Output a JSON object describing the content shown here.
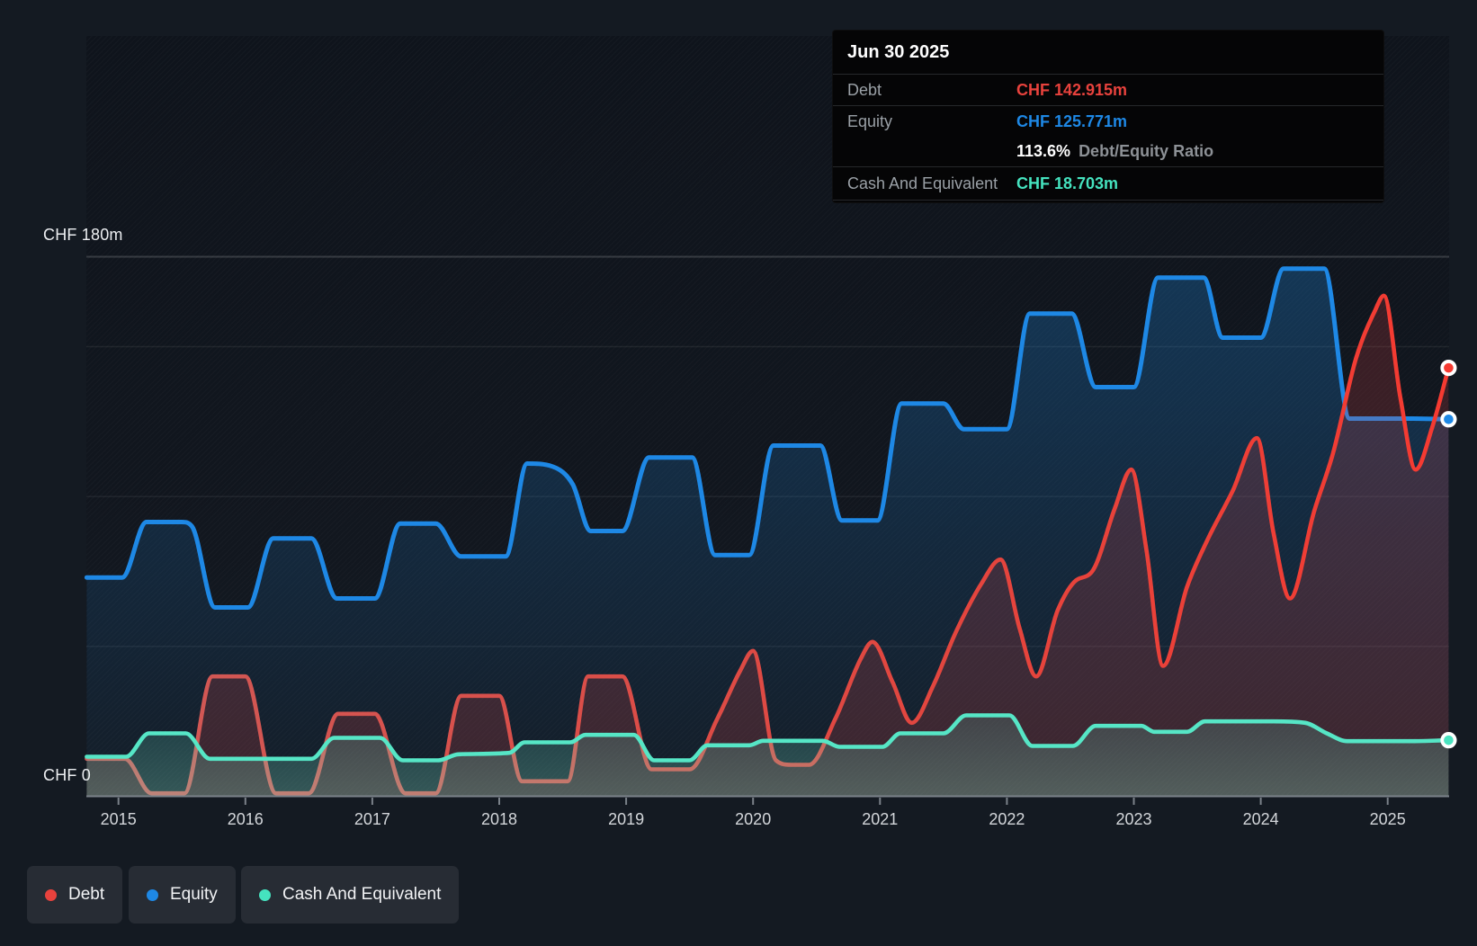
{
  "colors": {
    "debt": "#e8423d",
    "equity": "#1e88e5",
    "cash": "#45e3bf",
    "debt_line_start": "#cf5a57",
    "debt_line_mid": "#e2463f",
    "debt_line_end": "#f53a31",
    "equity_line": "#1e88e5",
    "cash_line": "#56e6c6",
    "axis_line": "#7b828a",
    "gridline_faint": "rgba(255,255,255,0.07)",
    "gridline_top": "rgba(255,255,255,0.16)"
  },
  "tooltip": {
    "date": "Jun 30 2025",
    "debt_label": "Debt",
    "debt_value": "CHF 142.915m",
    "equity_label": "Equity",
    "equity_value": "CHF 125.771m",
    "ratio_value": "113.6%",
    "ratio_label": "Debt/Equity Ratio",
    "cash_label": "Cash And Equivalent",
    "cash_value": "CHF 18.703m"
  },
  "axis": {
    "y_top_label": "CHF 180m",
    "y_zero_label": "CHF 0",
    "x_ticks": [
      "2015",
      "2016",
      "2017",
      "2018",
      "2019",
      "2020",
      "2021",
      "2022",
      "2023",
      "2024",
      "2025"
    ]
  },
  "legend": {
    "items": [
      {
        "id": "debt",
        "label": "Debt"
      },
      {
        "id": "equity",
        "label": "Equity"
      },
      {
        "id": "cash",
        "label": "Cash And Equivalent"
      }
    ]
  },
  "chart_data": {
    "type": "area",
    "x_unit": "decimal_year",
    "x_range": [
      2014.75,
      2025.48
    ],
    "ylim": [
      0,
      180
    ],
    "y_gridlines_m": [
      50,
      100,
      150,
      180
    ],
    "grid": true,
    "legend_position": "bottom-left",
    "last_point_date": "Jun 30 2025",
    "series": [
      {
        "name": "Equity",
        "color": "#1e88e5",
        "points": [
          [
            2014.75,
            73
          ],
          [
            2015.03,
            73
          ],
          [
            2015.22,
            91.5
          ],
          [
            2015.5,
            91.5
          ],
          [
            2015.58,
            90
          ],
          [
            2015.76,
            63
          ],
          [
            2016.02,
            63
          ],
          [
            2016.22,
            86
          ],
          [
            2016.52,
            86
          ],
          [
            2016.72,
            66
          ],
          [
            2017.02,
            66
          ],
          [
            2017.22,
            91
          ],
          [
            2017.5,
            91
          ],
          [
            2017.7,
            80
          ],
          [
            2018.05,
            80
          ],
          [
            2018.22,
            111
          ],
          [
            2018.42,
            110
          ],
          [
            2018.58,
            104
          ],
          [
            2018.72,
            88.5
          ],
          [
            2018.97,
            88.5
          ],
          [
            2019.18,
            113
          ],
          [
            2019.52,
            113
          ],
          [
            2019.7,
            80.5
          ],
          [
            2019.97,
            80.5
          ],
          [
            2020.16,
            117
          ],
          [
            2020.53,
            117
          ],
          [
            2020.7,
            92
          ],
          [
            2020.98,
            92
          ],
          [
            2021.17,
            131
          ],
          [
            2021.5,
            131
          ],
          [
            2021.66,
            122.5
          ],
          [
            2022.0,
            122.5
          ],
          [
            2022.18,
            161
          ],
          [
            2022.51,
            161
          ],
          [
            2022.7,
            136.5
          ],
          [
            2023.0,
            136.5
          ],
          [
            2023.19,
            173
          ],
          [
            2023.55,
            173
          ],
          [
            2023.7,
            153
          ],
          [
            2024.0,
            153
          ],
          [
            2024.18,
            176
          ],
          [
            2024.5,
            176
          ],
          [
            2024.7,
            126
          ],
          [
            2025.2,
            126
          ],
          [
            2025.48,
            125.771
          ]
        ]
      },
      {
        "name": "Debt",
        "color": "#e8423d",
        "points": [
          [
            2014.75,
            12.5
          ],
          [
            2015.05,
            12.5
          ],
          [
            2015.26,
            1
          ],
          [
            2015.52,
            1
          ],
          [
            2015.74,
            40
          ],
          [
            2016.0,
            40
          ],
          [
            2016.24,
            1
          ],
          [
            2016.5,
            1
          ],
          [
            2016.73,
            27.5
          ],
          [
            2017.02,
            27.5
          ],
          [
            2017.26,
            1
          ],
          [
            2017.5,
            1
          ],
          [
            2017.7,
            33.5
          ],
          [
            2018.0,
            33.5
          ],
          [
            2018.18,
            5
          ],
          [
            2018.54,
            5
          ],
          [
            2018.7,
            40
          ],
          [
            2018.97,
            40
          ],
          [
            2019.2,
            9
          ],
          [
            2019.5,
            9
          ],
          [
            2019.72,
            26
          ],
          [
            2019.9,
            42
          ],
          [
            2020.0,
            48.5
          ],
          [
            2020.18,
            12
          ],
          [
            2020.3,
            10.5
          ],
          [
            2020.44,
            10.5
          ],
          [
            2020.65,
            26
          ],
          [
            2020.85,
            46
          ],
          [
            2020.94,
            51.5
          ],
          [
            2021.1,
            38
          ],
          [
            2021.25,
            24.5
          ],
          [
            2021.42,
            37
          ],
          [
            2021.6,
            55
          ],
          [
            2021.8,
            71
          ],
          [
            2021.95,
            79
          ],
          [
            2022.1,
            56
          ],
          [
            2022.23,
            40
          ],
          [
            2022.4,
            62
          ],
          [
            2022.53,
            71.5
          ],
          [
            2022.68,
            75.5
          ],
          [
            2022.85,
            96
          ],
          [
            2022.98,
            109
          ],
          [
            2023.1,
            82
          ],
          [
            2023.23,
            43.5
          ],
          [
            2023.42,
            70
          ],
          [
            2023.58,
            85.5
          ],
          [
            2023.78,
            102
          ],
          [
            2023.97,
            119.5
          ],
          [
            2024.1,
            88
          ],
          [
            2024.23,
            66
          ],
          [
            2024.42,
            95
          ],
          [
            2024.57,
            114.5
          ],
          [
            2024.75,
            146
          ],
          [
            2024.9,
            162
          ],
          [
            2024.97,
            167
          ],
          [
            2025.1,
            133
          ],
          [
            2025.22,
            109
          ],
          [
            2025.35,
            123
          ],
          [
            2025.48,
            142.915
          ]
        ]
      },
      {
        "name": "Cash And Equivalent",
        "color": "#45e3bf",
        "points": [
          [
            2014.75,
            13.2
          ],
          [
            2015.06,
            13.2
          ],
          [
            2015.24,
            21
          ],
          [
            2015.53,
            21
          ],
          [
            2015.72,
            12.5
          ],
          [
            2016.52,
            12.5
          ],
          [
            2016.7,
            19.5
          ],
          [
            2017.06,
            19.5
          ],
          [
            2017.24,
            12
          ],
          [
            2017.52,
            12
          ],
          [
            2017.68,
            14
          ],
          [
            2018.08,
            14.5
          ],
          [
            2018.2,
            18
          ],
          [
            2018.56,
            18
          ],
          [
            2018.68,
            20.5
          ],
          [
            2019.06,
            20.5
          ],
          [
            2019.22,
            12
          ],
          [
            2019.5,
            12
          ],
          [
            2019.64,
            17
          ],
          [
            2019.97,
            17
          ],
          [
            2020.08,
            18.5
          ],
          [
            2020.55,
            18.5
          ],
          [
            2020.68,
            16.5
          ],
          [
            2021.02,
            16.5
          ],
          [
            2021.16,
            21
          ],
          [
            2021.5,
            21
          ],
          [
            2021.68,
            27
          ],
          [
            2022.02,
            27
          ],
          [
            2022.2,
            16.8
          ],
          [
            2022.52,
            16.8
          ],
          [
            2022.7,
            23.5
          ],
          [
            2023.06,
            23.5
          ],
          [
            2023.16,
            21.5
          ],
          [
            2023.42,
            21.5
          ],
          [
            2023.56,
            25
          ],
          [
            2024.1,
            25
          ],
          [
            2024.35,
            24.5
          ],
          [
            2024.52,
            21
          ],
          [
            2024.68,
            18.4
          ],
          [
            2025.2,
            18.4
          ],
          [
            2025.48,
            18.703
          ]
        ]
      }
    ]
  }
}
